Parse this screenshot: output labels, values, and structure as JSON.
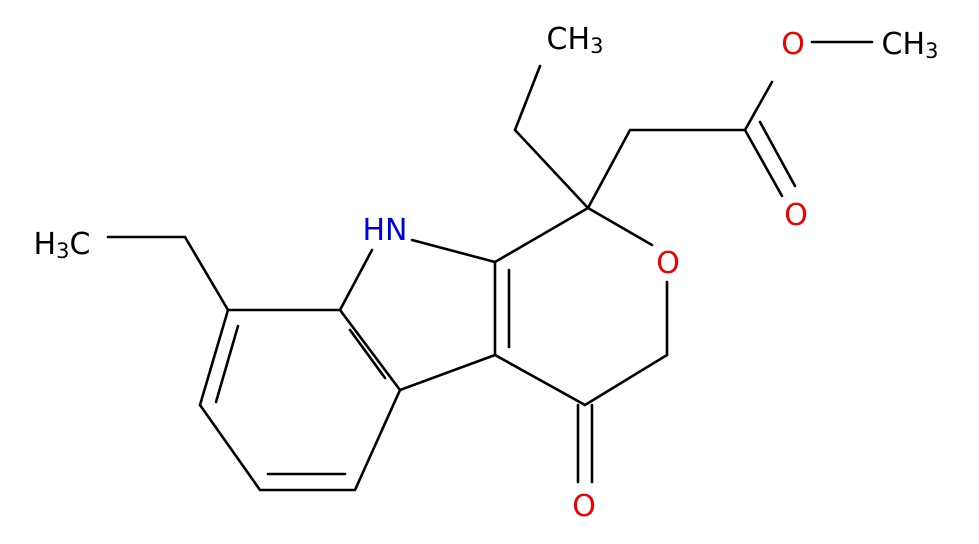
{
  "atoms": [
    {
      "label": "CH3"
    },
    {
      "label": "O"
    },
    {
      "label": "CH3"
    },
    {
      "label": "O"
    },
    {
      "label": "H3C"
    },
    {
      "label": "HN"
    },
    {
      "label": "O"
    },
    {
      "label": "O"
    }
  ]
}
